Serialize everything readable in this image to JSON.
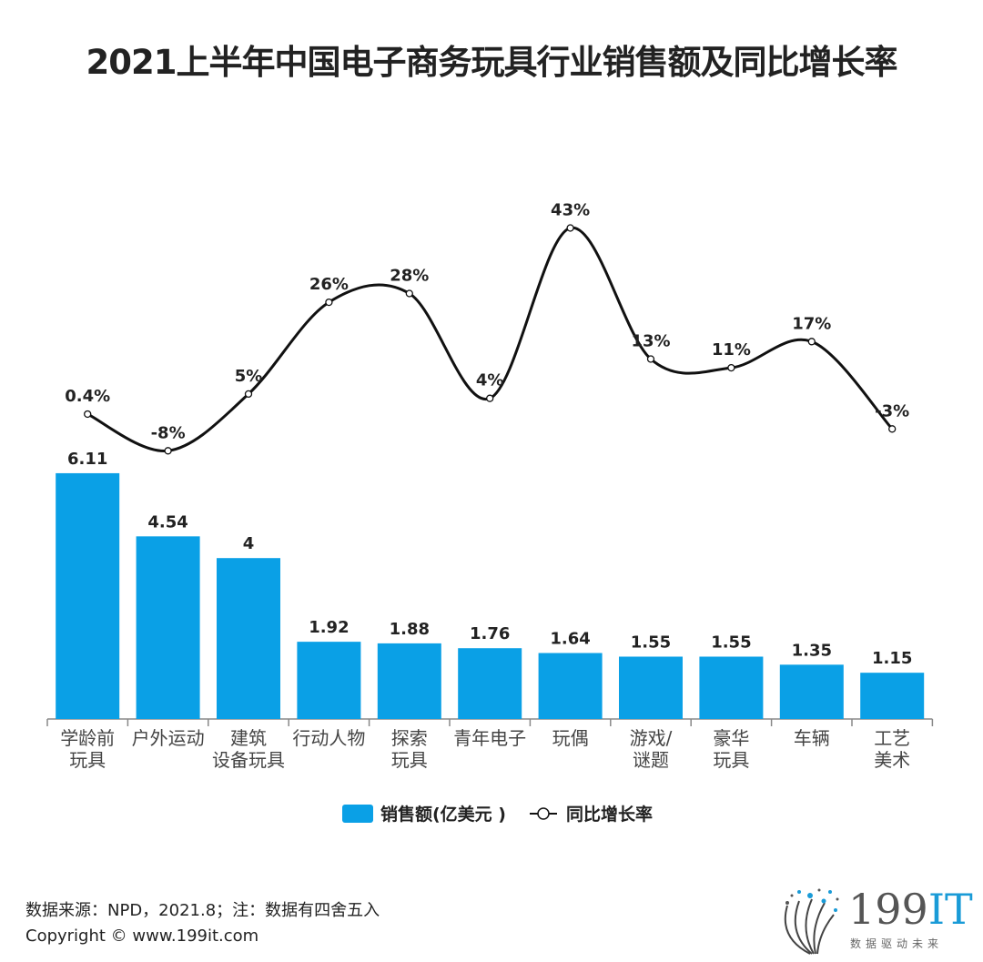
{
  "chart_data": {
    "type": "bar+line",
    "title": "2021上半年中国电子商务玩具行业销售额及同比增长率",
    "categories": [
      "学龄前\n玩具",
      "户外运动",
      "建筑\n设备玩具",
      "行动人物",
      "探索\n玩具",
      "青年电子",
      "玩偶",
      "游戏/\n谜题",
      "豪华\n玩具",
      "车辆",
      "工艺\n美术"
    ],
    "series": [
      {
        "name": "销售额(亿美元 )",
        "type": "bar",
        "color": "#0aa0e6",
        "values": [
          6.11,
          4.54,
          4,
          1.92,
          1.88,
          1.76,
          1.64,
          1.55,
          1.55,
          1.35,
          1.15
        ],
        "labels": [
          "6.11",
          "4.54",
          "4",
          "1.92",
          "1.88",
          "1.76",
          "1.64",
          "1.55",
          "1.55",
          "1.35",
          "1.15"
        ]
      },
      {
        "name": "同比增长率",
        "type": "line",
        "color": "#111111",
        "values": [
          0.4,
          -8,
          5,
          26,
          28,
          4,
          43,
          13,
          11,
          17,
          -3
        ],
        "labels": [
          "0.4%",
          "-8%",
          "5%",
          "26%",
          "28%",
          "4%",
          "43%",
          "13%",
          "11%",
          "17%",
          "-3%"
        ]
      }
    ],
    "grid": false,
    "legend": "bottom"
  },
  "footer": {
    "source": "数据来源：NPD，2021.8；注：数据有四舍五入",
    "copyright": "Copyright © www.199it.com"
  },
  "logo": {
    "brand": "199IT",
    "tagline": "数据驱动未来"
  }
}
